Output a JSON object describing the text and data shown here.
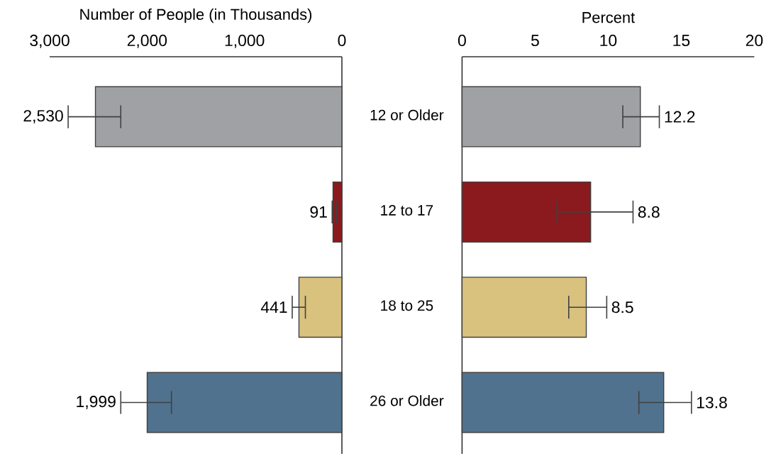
{
  "chart_data": [
    {
      "type": "bar",
      "orientation": "horizontal",
      "xlabel": "Number of People (in Thousands)",
      "categories": [
        null,
        null,
        null,
        null
      ],
      "values": [
        2530,
        91,
        441,
        1999
      ],
      "value_labels": [
        "2,530",
        "91",
        "441",
        "1,999"
      ],
      "colors": [
        "#a0a1a5",
        "#8b1a1e",
        "#d9c17e",
        "#50728e"
      ],
      "errors": [
        [
          2270,
          2810
        ],
        [
          55,
          100
        ],
        [
          375,
          510
        ],
        [
          1750,
          2270
        ]
      ],
      "xlim": [
        3000,
        0
      ],
      "xticks": [
        {
          "value": 3000,
          "label": "3,000"
        },
        {
          "value": 2000,
          "label": "2,000"
        },
        {
          "value": 1000,
          "label": "1,000"
        },
        0
      ],
      "tick_labels": "x"
    },
    {
      "type": "bar",
      "orientation": "horizontal",
      "xlabel": "Percent",
      "categories": [
        "12 or Older",
        "12 to 17",
        "18 to 25",
        "26 or Older"
      ],
      "values": [
        12.2,
        8.8,
        8.5,
        13.8
      ],
      "value_labels": [
        "12.2",
        "8.8",
        "8.5",
        "13.8"
      ],
      "colors": [
        "#a0a1a5",
        "#8b1a1e",
        "#d9c17e",
        "#50728e"
      ],
      "errors": [
        [
          11.0,
          13.5
        ],
        [
          6.5,
          11.7
        ],
        [
          7.3,
          9.9
        ],
        [
          12.1,
          15.7
        ]
      ],
      "xlim": [
        0,
        20
      ],
      "xticks": [
        0,
        5,
        10,
        15,
        20
      ]
    }
  ]
}
